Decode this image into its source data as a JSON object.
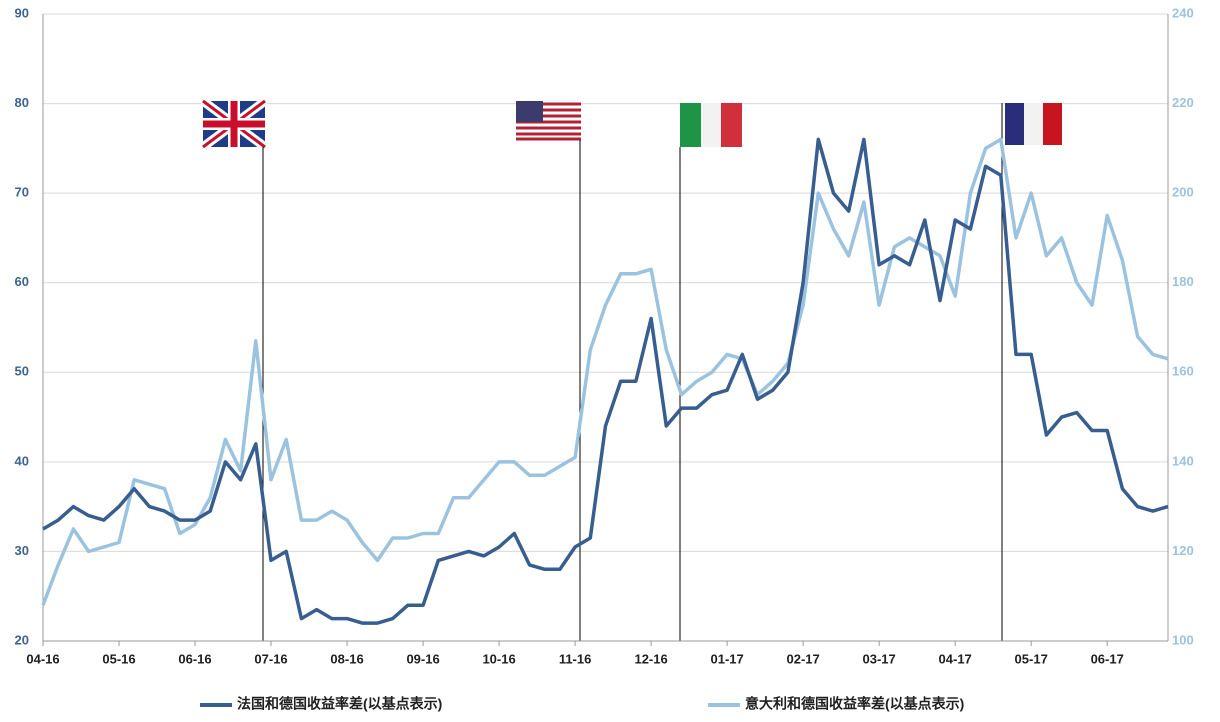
{
  "chart_data": {
    "type": "line",
    "categories": [
      "04-16",
      null,
      null,
      null,
      null,
      "05-16",
      null,
      null,
      null,
      null,
      "06-16",
      null,
      null,
      null,
      null,
      "07-16",
      null,
      null,
      null,
      null,
      "08-16",
      null,
      null,
      null,
      null,
      "09-16",
      null,
      null,
      null,
      null,
      "10-16",
      null,
      null,
      null,
      null,
      "11-16",
      null,
      null,
      null,
      null,
      "12-16",
      null,
      null,
      null,
      null,
      "01-17",
      null,
      null,
      null,
      null,
      "02-17",
      null,
      null,
      null,
      null,
      "03-17",
      null,
      null,
      null,
      null,
      "04-17",
      null,
      null,
      null,
      null,
      "05-17",
      null,
      null,
      null,
      null,
      "06-17",
      null,
      null,
      null,
      null
    ],
    "series": [
      {
        "name": "法国和德国收益率差(以基点表示)",
        "color": "#375e8f",
        "axis": "y",
        "values": [
          32.5,
          33.5,
          35,
          34,
          33.5,
          35,
          37,
          35,
          34.5,
          33.5,
          33.5,
          34.5,
          40,
          38,
          42,
          29,
          30,
          22.5,
          23.5,
          22.5,
          22.5,
          22,
          22,
          22.5,
          24,
          24,
          29,
          29.5,
          30,
          29.5,
          30.5,
          32,
          28.5,
          28,
          28,
          30.5,
          31.5,
          44,
          49,
          49,
          56,
          44,
          46,
          46,
          47.5,
          48,
          52,
          47,
          48,
          50,
          60,
          76,
          70,
          68,
          76,
          62,
          63,
          62,
          67,
          58,
          67,
          66,
          73,
          72,
          52,
          52,
          43,
          45,
          45.5,
          43.5,
          43.5,
          37,
          35,
          34.5,
          35
        ]
      },
      {
        "name": "意大利和德国收益率差(以基点表示)",
        "color": "#9bc3e0",
        "axis": "y2",
        "values": [
          108,
          117,
          125,
          120,
          121,
          122,
          136,
          135,
          134,
          124,
          126,
          132,
          145,
          138,
          167,
          136,
          145,
          127,
          127,
          129,
          127,
          122,
          118,
          123,
          123,
          124,
          124,
          132,
          132,
          136,
          140,
          140,
          137,
          137,
          139,
          141,
          165,
          175,
          182,
          182,
          183,
          165,
          155,
          158,
          160,
          164,
          163,
          155,
          158,
          162,
          175,
          200,
          192,
          186,
          198,
          175,
          188,
          190,
          188,
          186,
          177,
          200,
          210,
          212,
          190,
          200,
          186,
          190,
          180,
          175,
          195,
          185,
          168,
          164,
          163
        ]
      }
    ],
    "ylim": [
      20,
      90
    ],
    "yticks": [
      20,
      30,
      40,
      50,
      60,
      70,
      80,
      90
    ],
    "y2lim": [
      100,
      240
    ],
    "y2ticks": [
      100,
      120,
      140,
      160,
      180,
      200,
      220,
      240
    ],
    "grid": true,
    "legend": "bottom"
  }
}
